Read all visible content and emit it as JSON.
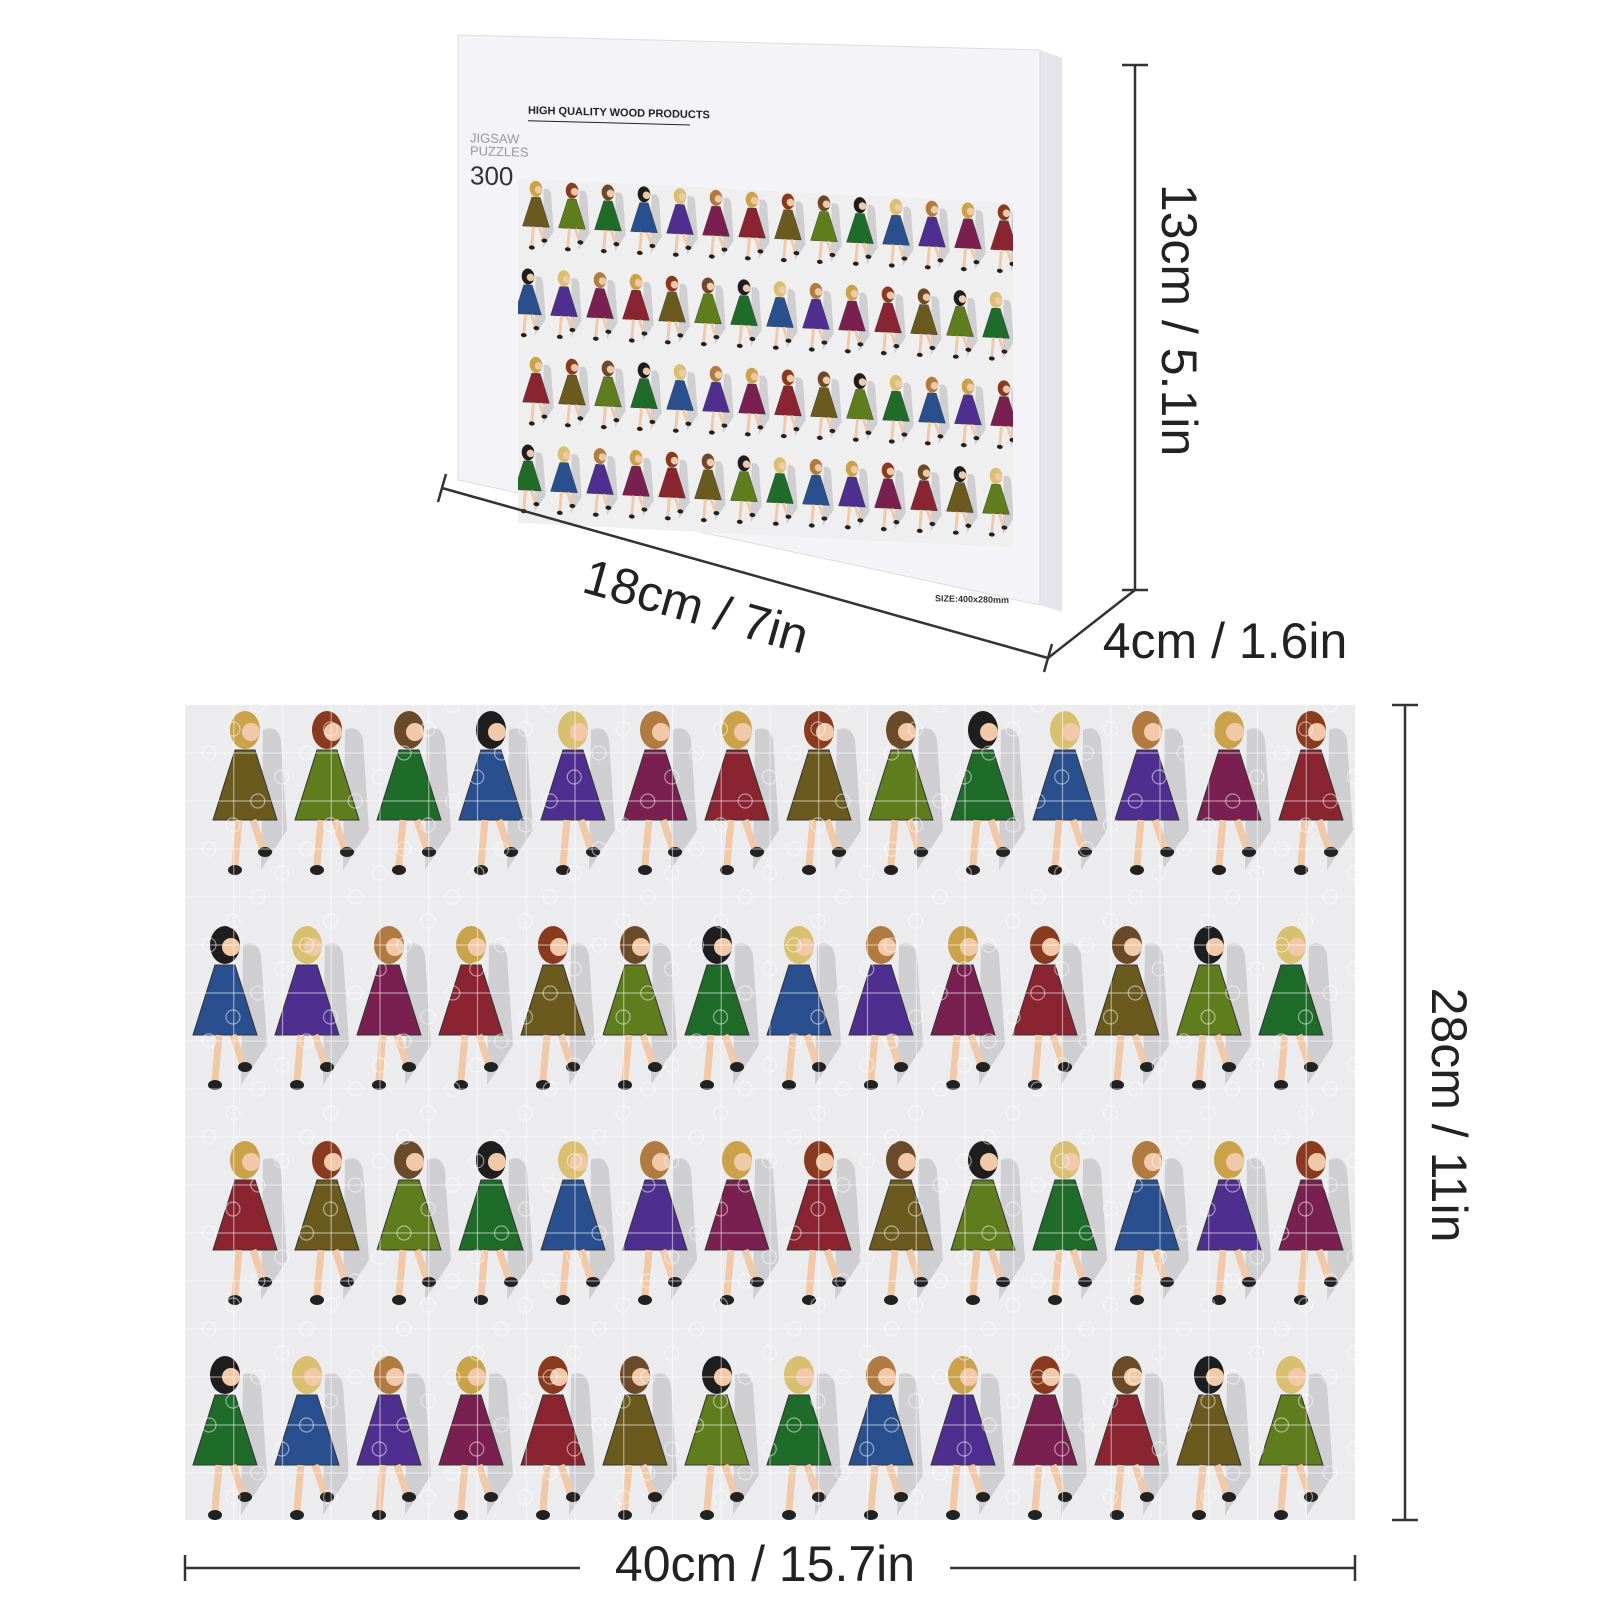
{
  "box": {
    "brand": "HIGH QUALITY WOOD PRODUCTS",
    "product_lines": [
      "JIGSAW",
      "PUZZLES"
    ],
    "pieces": "300",
    "size": "SIZE:400x280mm"
  },
  "dimensions": {
    "box_height": "13cm / 5.1in",
    "box_width": "18cm / 7in",
    "box_depth": "4cm / 1.6in",
    "puzzle_height": "28cm / 11in",
    "puzzle_width": "40cm / 15.7in"
  }
}
